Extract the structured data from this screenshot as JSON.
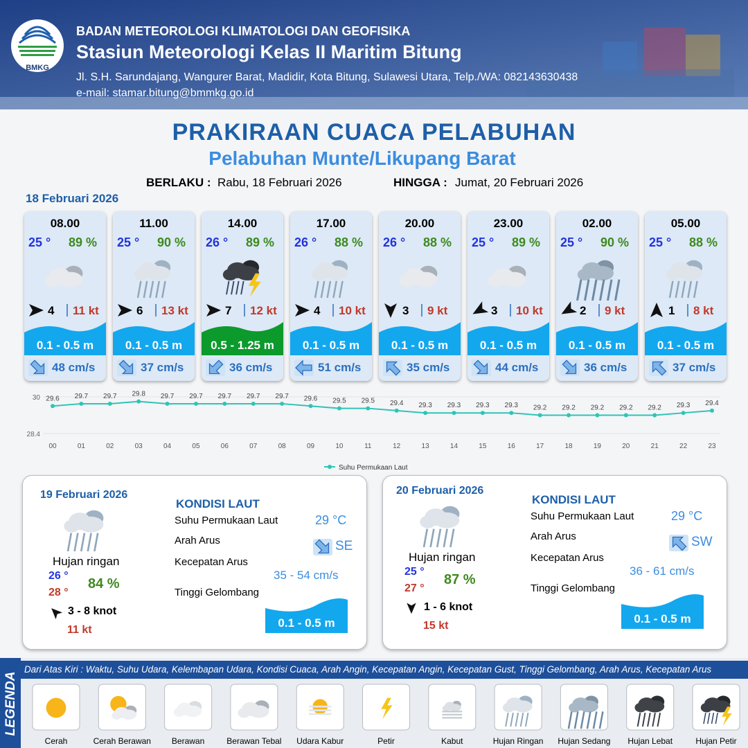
{
  "header": {
    "logo": "BMKG",
    "agency": "BADAN METEOROLOGI KLIMATOLOGI DAN GEOFISIKA",
    "station": "Stasiun Meteorologi Kelas II Maritim Bitung",
    "address": "Jl. S.H. Sarundajang, Wangurer Barat, Madidir, Kota Bitung, Sulawesi Utara, Telp./WA: 082143630438",
    "email": "e-mail: stamar.bitung@bmmkg.go.id"
  },
  "title": "PRAKIRAAN CUACA PELABUHAN",
  "subtitle": "Pelabuhan Munte/Likupang Barat",
  "validity": {
    "from_label": "BERLAKU :",
    "from": "Rabu, 18 Februari 2026",
    "to_label": "HINGGA :",
    "to": "Jumat, 20 Februari 2026"
  },
  "today": {
    "date": "18 Februari 2026",
    "slots": [
      {
        "time": "08.00",
        "temp": "25 °",
        "humidity": "89 %",
        "wind": 4,
        "gust": "11 kt",
        "wave": "0.1 - 0.5 m",
        "current": "48 cm/s"
      },
      {
        "time": "11.00",
        "temp": "25 °",
        "humidity": "90 %",
        "wind": 6,
        "gust": "13 kt",
        "wave": "0.1 - 0.5 m",
        "current": "37 cm/s"
      },
      {
        "time": "14.00",
        "temp": "26 °",
        "humidity": "89 %",
        "wind": 7,
        "gust": "12 kt",
        "wave": "0.5 - 1.25 m",
        "current": "36 cm/s"
      },
      {
        "time": "17.00",
        "temp": "26 °",
        "humidity": "88 %",
        "wind": 4,
        "gust": "10 kt",
        "wave": "0.1 - 0.5 m",
        "current": "51 cm/s"
      },
      {
        "time": "20.00",
        "temp": "26 °",
        "humidity": "88 %",
        "wind": 3,
        "gust": "9 kt",
        "wave": "0.1 - 0.5 m",
        "current": "35 cm/s"
      },
      {
        "time": "23.00",
        "temp": "25 °",
        "humidity": "89 %",
        "wind": 3,
        "gust": "10 kt",
        "wave": "0.1 - 0.5 m",
        "current": "44 cm/s"
      },
      {
        "time": "02.00",
        "temp": "25 °",
        "humidity": "90 %",
        "wind": 2,
        "gust": "9 kt",
        "wave": "0.1 - 0.5 m",
        "current": "36 cm/s"
      },
      {
        "time": "05.00",
        "temp": "25 °",
        "humidity": "88 %",
        "wind": 1,
        "gust": "8 kt",
        "wave": "0.1 - 0.5 m",
        "current": "37 cm/s"
      }
    ]
  },
  "chart_data": {
    "type": "line",
    "categories": [
      "00",
      "01",
      "02",
      "03",
      "04",
      "05",
      "06",
      "07",
      "08",
      "09",
      "10",
      "11",
      "12",
      "13",
      "14",
      "15",
      "16",
      "17",
      "18",
      "19",
      "20",
      "21",
      "22",
      "23"
    ],
    "series": [
      {
        "name": "Suhu Permukaan Laut",
        "color": "#2ec4b6",
        "values": [
          29.6,
          29.7,
          29.7,
          29.8,
          29.7,
          29.7,
          29.7,
          29.7,
          29.7,
          29.6,
          29.5,
          29.5,
          29.4,
          29.3,
          29.3,
          29.3,
          29.3,
          29.2,
          29.2,
          29.2,
          29.2,
          29.2,
          29.3,
          29.4
        ]
      }
    ],
    "ylim": [
      28.4,
      30
    ],
    "yticks": [
      28.4,
      30
    ],
    "legend": "bottom"
  },
  "days": [
    {
      "date": "19 Februari 2026",
      "weather": "Hujan ringan",
      "temp_min": "26 °",
      "temp_max": "28 °",
      "humidity": "84 %",
      "wind": "3 - 8 knot",
      "gust": "11 kt",
      "sea": {
        "title": "KONDISI LAUT",
        "labels": [
          "Suhu Permukaan Laut",
          "Arah Arus",
          "Kecepatan Arus",
          "Tinggi Gelombang"
        ],
        "sst": "29 °C",
        "current_dir": "SE",
        "current_speed": "35 - 54 cm/s",
        "wave": "0.1 - 0.5 m"
      }
    },
    {
      "date": "20 Februari 2026",
      "weather": "Hujan ringan",
      "temp_min": "25 °",
      "temp_max": "27 °",
      "humidity": "87 %",
      "wind": "1 - 6 knot",
      "gust": "15 kt",
      "sea": {
        "title": "KONDISI LAUT",
        "labels": [
          "Suhu Permukaan Laut",
          "Arah Arus",
          "Kecepatan Arus",
          "Tinggi Gelombang"
        ],
        "sst": "29 °C",
        "current_dir": "SW",
        "current_speed": "36 - 61 cm/s",
        "wave": "0.1 - 0.5 m"
      }
    }
  ],
  "legend": {
    "title": "LEGENDA",
    "description": "Dari Atas Kiri : Waktu, Suhu Udara, Kelembapan Udara, Kondisi Cuaca, Arah Angin, Kecepatan Angin, Kecepatan Gust, Tinggi Gelombang, Arah Arus, Kecepatan Arus",
    "items": [
      "Cerah",
      "Cerah Berawan",
      "Berawan",
      "Berawan Tebal",
      "Udara Kabur",
      "Petir",
      "Kabut",
      "Hujan Ringan",
      "Hujan Sedang",
      "Hujan Lebat",
      "Hujan Petir"
    ]
  }
}
